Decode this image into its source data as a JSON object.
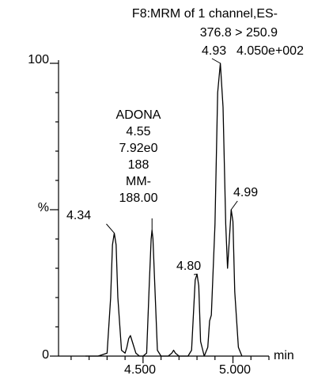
{
  "chart_data": {
    "type": "line",
    "header": {
      "line1": "F8:MRM of 1 channel,ES-",
      "line2": "376.8 > 250.9",
      "base_peak_rt": "4.93",
      "intensity": "4.050e+002"
    },
    "xlabel": "min",
    "ylabel": "%",
    "xlim": [
      4.03,
      5.2
    ],
    "ylim": [
      0,
      100
    ],
    "x_ticks": [
      4.5,
      5.0
    ],
    "x_tick_labels": [
      "4.500",
      "5.000"
    ],
    "y_tick_labels": [
      "0",
      "%",
      "100"
    ],
    "x_minor_step": 0.1,
    "grid": false,
    "series": [
      {
        "x": [
          4.18,
          4.25,
          4.3,
          4.32,
          4.33,
          4.34,
          4.35,
          4.36,
          4.38,
          4.4,
          4.41,
          4.42,
          4.43,
          4.44,
          4.46,
          4.48,
          4.5,
          4.52,
          4.535,
          4.545,
          4.55,
          4.555,
          4.565,
          4.58,
          4.6,
          4.62,
          4.64,
          4.66,
          4.67,
          4.68,
          4.7,
          4.75,
          4.77,
          4.79,
          4.8,
          4.81,
          4.82,
          4.84,
          4.86,
          4.87,
          4.88,
          4.9,
          4.915,
          4.93,
          4.945,
          4.96,
          4.97,
          4.98,
          4.99,
          5.0,
          5.01,
          5.03,
          5.05
        ],
        "y": [
          0,
          0,
          1,
          20,
          38,
          42,
          38,
          20,
          2,
          1,
          3,
          6,
          7,
          5,
          1,
          0,
          0,
          1,
          25,
          40,
          43,
          40,
          25,
          2,
          0,
          0,
          0,
          1,
          2,
          1,
          0,
          0,
          2,
          26,
          28,
          24,
          5,
          0,
          3,
          12,
          14,
          45,
          90,
          100,
          85,
          45,
          30,
          40,
          50,
          46,
          22,
          3,
          0
        ]
      }
    ],
    "annotations": [
      {
        "lines": [
          "4.34"
        ],
        "x": 4.34,
        "y": 42
      },
      {
        "lines": [
          "ADONA",
          "4.55",
          "7.92e0",
          "188",
          "MM-",
          "188.00"
        ],
        "x": 4.55,
        "y": 43
      },
      {
        "lines": [
          "4.80"
        ],
        "x": 4.8,
        "y": 28
      },
      {
        "lines": [
          "4.99"
        ],
        "x": 4.99,
        "y": 50
      }
    ]
  }
}
